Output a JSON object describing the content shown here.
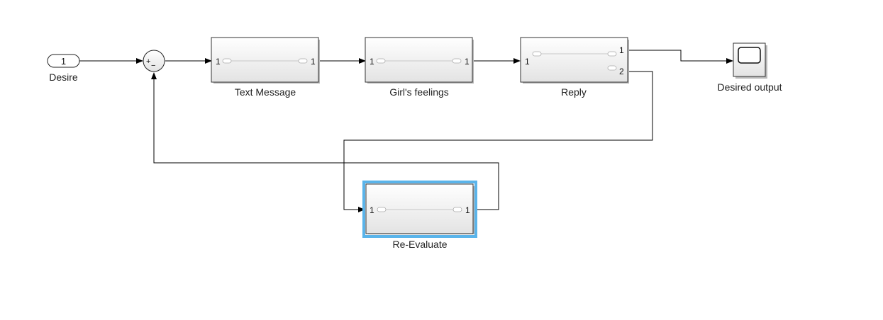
{
  "inport": {
    "number": "1",
    "label": "Desire"
  },
  "sum": {
    "plus": "+",
    "minus": "−"
  },
  "blocks": {
    "text_message": {
      "label": "Text Message",
      "in": "1",
      "out": "1"
    },
    "girls_feelings": {
      "label": "Girl's feelings",
      "in": "1",
      "out": "1"
    },
    "reply": {
      "label": "Reply",
      "in": "1",
      "out1": "1",
      "out2": "2"
    },
    "re_evaluate": {
      "label": "Re-Evaluate",
      "in": "1",
      "out": "1"
    }
  },
  "scope": {
    "label": "Desired output"
  },
  "colors": {
    "selection": "#5ab4ea",
    "block_border": "#333333"
  }
}
